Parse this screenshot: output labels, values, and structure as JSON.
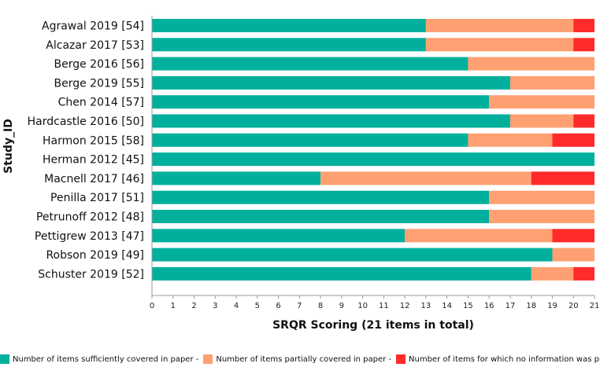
{
  "chart_data": {
    "type": "bar",
    "orientation": "horizontal",
    "stacked": true,
    "categories": [
      "Agrawal 2019 [54]",
      "Alcazar 2017 [53]",
      "Berge 2016 [56]",
      "Berge 2019 [55]",
      "Chen 2014 [57]",
      "Hardcastle 2016 [50]",
      "Harmon 2015 [58]",
      "Herman 2012 [45]",
      "Macnell 2017 [46]",
      "Penilla 2017 [51]",
      "Petrunoff 2012 [48]",
      "Pettigrew 2013 [47]",
      "Robson 2019 [49]",
      "Schuster 2019 [52]"
    ],
    "series": [
      {
        "name": "Number of items sufficiently covered in paper -",
        "color": "#00B09C",
        "values": [
          13,
          13,
          15,
          17,
          16,
          17,
          15,
          21,
          8,
          16,
          16,
          12,
          19,
          18
        ]
      },
      {
        "name": "Number of items partially covered in paper -",
        "color": "#FFA072",
        "values": [
          7,
          7,
          6,
          4,
          5,
          3,
          4,
          0,
          10,
          5,
          5,
          7,
          2,
          2
        ]
      },
      {
        "name": "Number of items for which no information was provided",
        "color": "#FF2A2A",
        "values": [
          1,
          1,
          0,
          0,
          0,
          1,
          2,
          0,
          3,
          0,
          0,
          2,
          0,
          1
        ]
      }
    ],
    "xlabel": "SRQR Scoring (21 items in total)",
    "ylabel": "Study_ID",
    "xlim": [
      0,
      21
    ],
    "xticks": [
      "0",
      "1",
      "2",
      "3",
      "4",
      "5",
      "6",
      "7",
      "8",
      "9",
      "10",
      "11",
      "12",
      "13",
      "14",
      "15",
      "16",
      "17",
      "18",
      "19",
      "20",
      "21"
    ],
    "legend_position": "bottom",
    "grid": false
  }
}
